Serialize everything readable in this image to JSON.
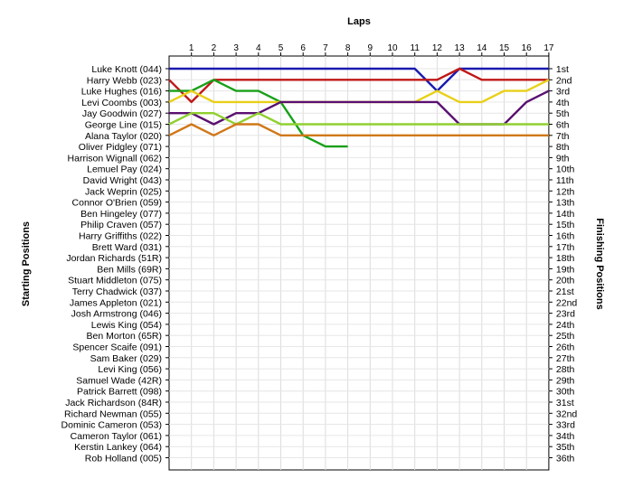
{
  "chart_data": {
    "type": "line",
    "title": "Laps",
    "xlabel": "Laps",
    "ylabel_left": "Starting Positions",
    "ylabel_right": "Finishing Positions",
    "x": [
      0,
      1,
      2,
      3,
      4,
      5,
      6,
      7,
      8,
      9,
      10,
      11,
      12,
      13,
      14,
      15,
      16,
      17
    ],
    "x_ticks": [
      "1",
      "2",
      "3",
      "4",
      "5",
      "6",
      "7",
      "8",
      "9",
      "10",
      "11",
      "12",
      "13",
      "14",
      "15",
      "16",
      "17"
    ],
    "drivers": [
      "Luke Knott (044)",
      "Harry Webb (023)",
      "Luke Hughes (016)",
      "Levi Coombs (003)",
      "Jay Goodwin (027)",
      "George Line (015)",
      "Alana Taylor (020)",
      "Oliver Pidgley (071)",
      "Harrison Wignall (062)",
      "Lemuel Pay (024)",
      "David Wright (043)",
      "Jack Weprin (025)",
      "Connor O'Brien (059)",
      "Ben Hingeley (077)",
      "Philip Craven (057)",
      "Harry Griffiths (022)",
      "Brett Ward (031)",
      "Jordan Richards (51R)",
      "Ben Mills (69R)",
      "Stuart Middleton (075)",
      "Terry Chadwick (037)",
      "James Appleton (021)",
      "Josh Armstrong (046)",
      "Lewis King (054)",
      "Ben Morton (65R)",
      "Spencer Scaife (091)",
      "Sam Baker (029)",
      "Levi King (056)",
      "Samuel Wade (42R)",
      "Patrick Barrett (098)",
      "Jack Richardson (84R)",
      "Richard Newman (055)",
      "Dominic Cameron (053)",
      "Cameron Taylor (061)",
      "Kerstin Lankey (064)",
      "Rob Holland (005)"
    ],
    "finishing_positions": [
      "1st",
      "2nd",
      "3rd",
      "4th",
      "5th",
      "6th",
      "7th",
      "8th",
      "9th",
      "10th",
      "11th",
      "12th",
      "13th",
      "14th",
      "15th",
      "16th",
      "17th",
      "18th",
      "19th",
      "20th",
      "21st",
      "22nd",
      "23rd",
      "24th",
      "25th",
      "26th",
      "27th",
      "28th",
      "29th",
      "30th",
      "31st",
      "32nd",
      "33rd",
      "34th",
      "35th",
      "36th"
    ],
    "series": [
      {
        "color": "#1a1ab0",
        "positions": [
          1,
          1,
          1,
          1,
          1,
          1,
          1,
          1,
          1,
          1,
          1,
          1,
          3,
          1,
          1,
          1,
          1,
          1
        ]
      },
      {
        "color": "#c01818",
        "positions": [
          2,
          4,
          2,
          2,
          2,
          2,
          2,
          2,
          2,
          2,
          2,
          2,
          2,
          1,
          2,
          2,
          2,
          2
        ]
      },
      {
        "color": "#18a018",
        "positions": [
          3,
          3,
          2,
          3,
          3,
          4,
          7,
          8,
          8
        ]
      },
      {
        "color": "#e8d018",
        "positions": [
          4,
          3,
          4,
          4,
          4,
          4,
          4,
          4,
          4,
          4,
          4,
          4,
          3,
          4,
          4,
          3,
          3,
          2
        ]
      },
      {
        "color": "#5a1070",
        "positions": [
          5,
          5,
          6,
          5,
          5,
          4,
          4,
          4,
          4,
          4,
          4,
          4,
          4,
          6,
          6,
          6,
          4,
          3
        ]
      },
      {
        "color": "#90d030",
        "positions": [
          6,
          5,
          5,
          6,
          5,
          6,
          6,
          6,
          6,
          6,
          6,
          6,
          6,
          6,
          6,
          6,
          6,
          6
        ]
      },
      {
        "color": "#d07818",
        "positions": [
          7,
          6,
          7,
          6,
          6,
          7,
          7,
          7,
          7,
          7,
          7,
          7,
          7,
          7,
          7,
          7,
          7,
          7
        ]
      }
    ]
  }
}
